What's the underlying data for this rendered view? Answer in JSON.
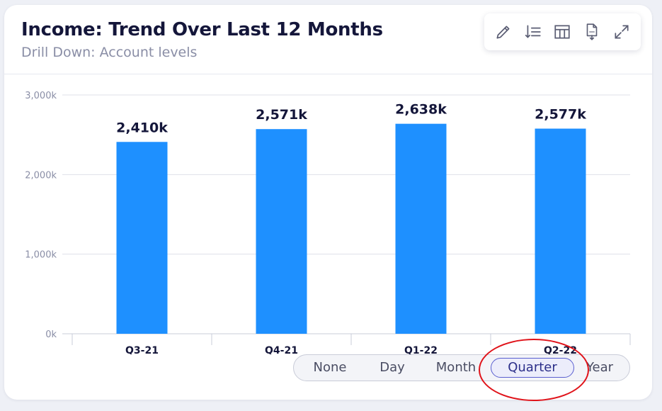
{
  "header": {
    "title": "Income: Trend Over Last 12 Months",
    "subtitle": "Drill Down: Account levels"
  },
  "toolbar": {
    "icons": [
      "pencil-icon",
      "sort-icon",
      "table-icon",
      "pdf-export-icon",
      "expand-icon"
    ]
  },
  "chart_data": {
    "type": "bar",
    "categories": [
      "Q3-21",
      "Q4-21",
      "Q1-22",
      "Q2-22"
    ],
    "values": [
      2410,
      2571,
      2638,
      2577
    ],
    "value_labels": [
      "2,410k",
      "2,571k",
      "2,638k",
      "2,577k"
    ],
    "yticks": [
      0,
      1000,
      2000,
      3000
    ],
    "ytick_labels": [
      "0k",
      "1,000k",
      "2,000k",
      "3,000k"
    ],
    "ylim": [
      0,
      3000
    ],
    "grid": true,
    "bar_color": "#1e90ff"
  },
  "granularity": {
    "options": [
      "None",
      "Day",
      "Month",
      "Quarter",
      "Year"
    ],
    "selected": "Quarter"
  },
  "annotation_color": "#e0131a"
}
